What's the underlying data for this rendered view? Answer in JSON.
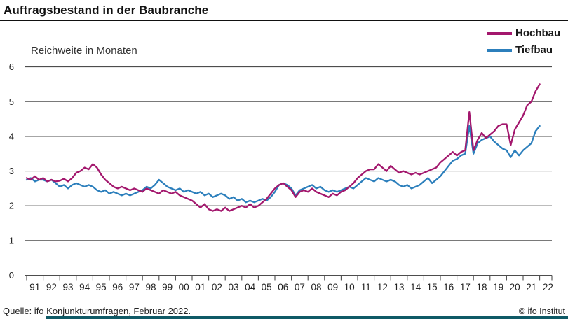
{
  "header": {
    "title": "Auftragsbestand in der Baubranche"
  },
  "footer": {
    "source": "Quelle: ifo Konjunkturumfragen, Februar 2022.",
    "copyright": "© ifo Institut"
  },
  "colors": {
    "hochbau": "#a3176d",
    "tiefbau": "#2c7fbc",
    "grid": "#4d4d4d",
    "axis_text": "#222222",
    "accent_bar": "#0f5a66"
  },
  "chart_data": {
    "type": "line",
    "title": "Auftragsbestand in der Baubranche",
    "ylabel": "Reichweite in Monaten",
    "xlabel": "",
    "ylim": [
      0,
      6
    ],
    "y_ticks": [
      0,
      1,
      2,
      3,
      4,
      5,
      6
    ],
    "grid": "horizontal",
    "legend_position": "top-right",
    "x_start_year": 1991,
    "x_step_years": 0.25,
    "x_end": "Februar 2022",
    "x_tick_labels": [
      "91",
      "92",
      "93",
      "94",
      "95",
      "96",
      "97",
      "98",
      "99",
      "00",
      "01",
      "02",
      "03",
      "04",
      "05",
      "06",
      "07",
      "08",
      "09",
      "10",
      "11",
      "12",
      "13",
      "14",
      "15",
      "16",
      "17",
      "18",
      "19",
      "20",
      "21",
      "22"
    ],
    "series": [
      {
        "name": "Hochbau",
        "color": "#a3176d",
        "values": [
          2.8,
          2.75,
          2.85,
          2.75,
          2.8,
          2.7,
          2.75,
          2.7,
          2.72,
          2.78,
          2.7,
          2.8,
          2.95,
          3.0,
          3.1,
          3.05,
          3.2,
          3.1,
          2.9,
          2.75,
          2.65,
          2.55,
          2.5,
          2.55,
          2.5,
          2.45,
          2.5,
          2.45,
          2.4,
          2.5,
          2.45,
          2.4,
          2.35,
          2.45,
          2.4,
          2.35,
          2.4,
          2.3,
          2.25,
          2.2,
          2.15,
          2.05,
          1.95,
          2.05,
          1.9,
          1.85,
          1.9,
          1.85,
          1.95,
          1.85,
          1.9,
          1.95,
          2.0,
          1.95,
          2.05,
          1.95,
          2.0,
          2.1,
          2.2,
          2.35,
          2.5,
          2.6,
          2.65,
          2.55,
          2.45,
          2.25,
          2.4,
          2.45,
          2.4,
          2.5,
          2.4,
          2.35,
          2.3,
          2.25,
          2.35,
          2.3,
          2.4,
          2.45,
          2.55,
          2.65,
          2.8,
          2.9,
          3.0,
          3.05,
          3.05,
          3.2,
          3.1,
          3.0,
          3.15,
          3.05,
          2.95,
          3.0,
          2.95,
          2.9,
          2.95,
          2.9,
          2.95,
          3.0,
          3.05,
          3.1,
          3.25,
          3.35,
          3.45,
          3.55,
          3.45,
          3.55,
          3.6,
          4.7,
          3.6,
          3.9,
          4.1,
          3.95,
          4.05,
          4.15,
          4.3,
          4.35,
          4.35,
          3.75,
          4.2,
          4.4,
          4.6,
          4.9,
          5.0,
          5.3,
          5.5
        ]
      },
      {
        "name": "Tiefbau",
        "color": "#2c7fbc",
        "values": [
          2.75,
          2.8,
          2.7,
          2.75,
          2.75,
          2.7,
          2.75,
          2.65,
          2.55,
          2.6,
          2.5,
          2.6,
          2.65,
          2.6,
          2.55,
          2.6,
          2.55,
          2.45,
          2.4,
          2.45,
          2.35,
          2.4,
          2.35,
          2.3,
          2.35,
          2.3,
          2.35,
          2.4,
          2.45,
          2.55,
          2.5,
          2.6,
          2.75,
          2.65,
          2.55,
          2.5,
          2.45,
          2.5,
          2.4,
          2.45,
          2.4,
          2.35,
          2.4,
          2.3,
          2.35,
          2.25,
          2.3,
          2.35,
          2.3,
          2.2,
          2.25,
          2.15,
          2.2,
          2.1,
          2.15,
          2.1,
          2.15,
          2.2,
          2.15,
          2.25,
          2.4,
          2.6,
          2.65,
          2.6,
          2.5,
          2.3,
          2.45,
          2.5,
          2.55,
          2.6,
          2.5,
          2.55,
          2.45,
          2.4,
          2.45,
          2.4,
          2.45,
          2.5,
          2.55,
          2.5,
          2.6,
          2.7,
          2.8,
          2.75,
          2.7,
          2.8,
          2.75,
          2.7,
          2.75,
          2.7,
          2.6,
          2.55,
          2.6,
          2.5,
          2.55,
          2.6,
          2.7,
          2.8,
          2.65,
          2.75,
          2.85,
          3.0,
          3.15,
          3.3,
          3.35,
          3.45,
          3.5,
          4.3,
          3.5,
          3.8,
          3.9,
          3.95,
          4.0,
          3.85,
          3.75,
          3.65,
          3.6,
          3.4,
          3.6,
          3.45,
          3.6,
          3.7,
          3.8,
          4.15,
          4.3
        ]
      }
    ]
  }
}
